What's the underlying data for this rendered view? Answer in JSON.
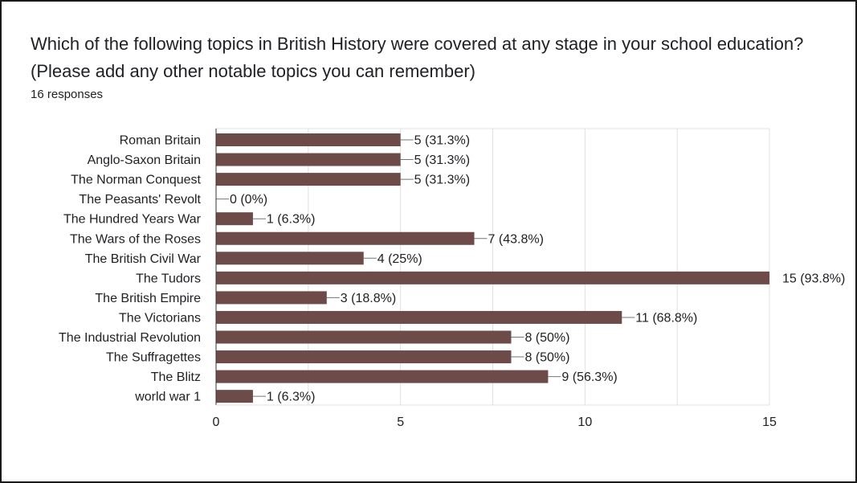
{
  "question": {
    "text": "Which of the following topics in British History were covered at any stage in your school education?  (Please add any other notable topics you can remember)",
    "responses": "16 responses"
  },
  "colors": {
    "bar": "#6d4b49",
    "grid": "#e0e0e0",
    "axis": "#333333",
    "text": "#202124"
  },
  "chart_data": {
    "type": "bar",
    "orientation": "horizontal",
    "categories": [
      "Roman Britain",
      "Anglo-Saxon Britain",
      "The Norman Conquest",
      "The Peasants' Revolt",
      "The Hundred Years War",
      "The Wars of the Roses",
      "The British Civil War",
      "The Tudors",
      "The British Empire",
      "The Victorians",
      "The Industrial Revolution",
      "The Suffragettes",
      "The Blitz",
      "world war 1"
    ],
    "values": [
      5,
      5,
      5,
      0,
      1,
      7,
      4,
      15,
      3,
      11,
      8,
      8,
      9,
      1
    ],
    "data_labels": [
      "5 (31.3%)",
      "5 (31.3%)",
      "5 (31.3%)",
      "0 (0%)",
      "1 (6.3%)",
      "7 (43.8%)",
      "4 (25%)",
      "15 (93.8%)",
      "3 (18.8%)",
      "11 (68.8%)",
      "8 (50%)",
      "8 (50%)",
      "9 (56.3%)",
      "1 (6.3%)"
    ],
    "xlim": [
      0,
      15
    ],
    "xticks": [
      0,
      5,
      10,
      15
    ],
    "grid": true,
    "title": "",
    "xlabel": "",
    "ylabel": ""
  }
}
